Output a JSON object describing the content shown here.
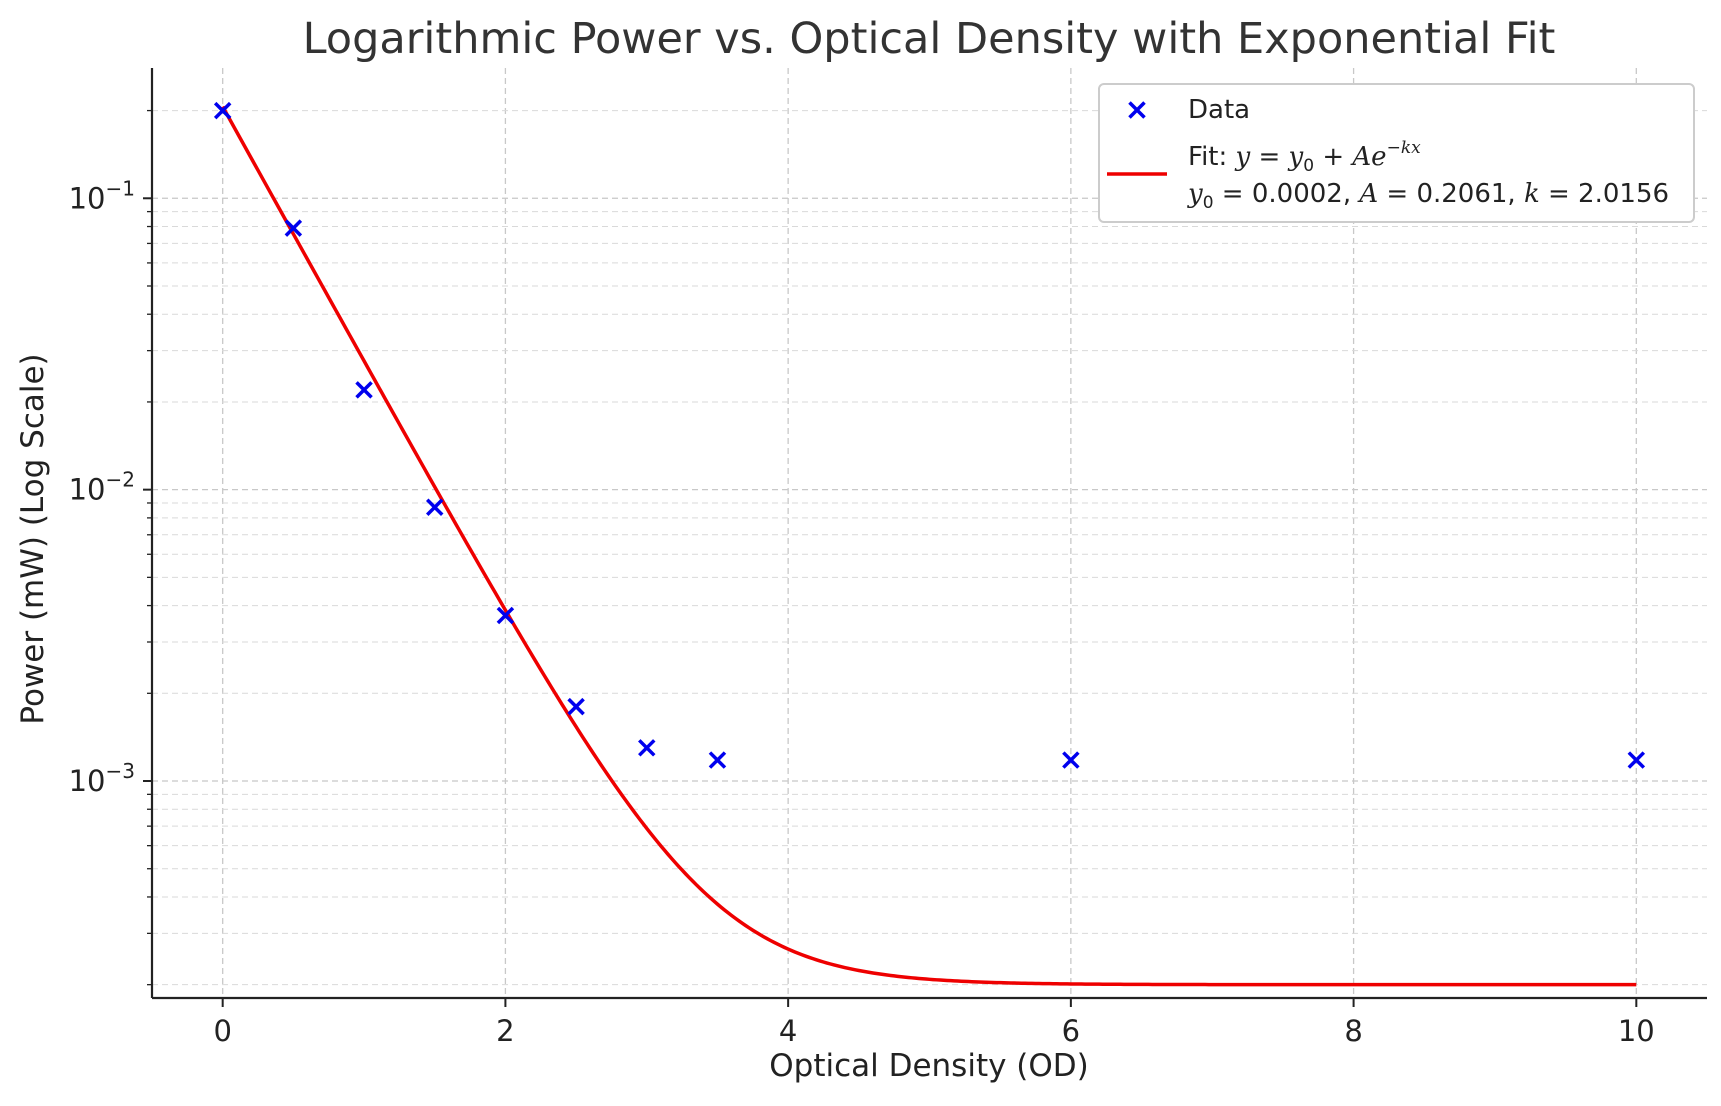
{
  "chart_data": {
    "type": "scatter",
    "title": "Logarithmic Power vs. Optical Density with Exponential Fit",
    "xlabel": "Optical Density (OD)",
    "ylabel": "Power (mW) (Log Scale)",
    "xlim": [
      -0.5,
      10.5
    ],
    "ylim": [
      0.00018,
      0.28
    ],
    "yscale": "log",
    "grid": true,
    "legend_position": "upper right",
    "x_ticks": [
      0,
      2,
      4,
      6,
      8,
      10
    ],
    "y_ticks": [
      0.001,
      0.01,
      0.1
    ],
    "y_tick_labels": [
      "10^-3",
      "10^-2",
      "10^-1"
    ],
    "series": [
      {
        "name": "Data",
        "kind": "scatter",
        "marker": "x",
        "color": "#0000ee",
        "x": [
          0,
          0.5,
          1,
          1.5,
          2,
          2.5,
          3,
          3.5,
          6,
          10
        ],
        "y": [
          0.2,
          0.079,
          0.022,
          0.0087,
          0.0037,
          0.0018,
          0.0013,
          0.00118,
          0.00118,
          0.00118
        ]
      },
      {
        "name": "Fit: y = y0 + Ae^-kx",
        "kind": "line",
        "color": "#ee0000",
        "model": "y0 + A*exp(-k*x)",
        "params": {
          "y0": 0.0002,
          "A": 0.2061,
          "k": 2.0156
        },
        "x_range": [
          0,
          10
        ]
      }
    ],
    "legend": {
      "data_label": "Data",
      "fit_prefix": "Fit:",
      "fit_params_text": "y0 = 0.0002, A = 0.2061, k = 2.0156"
    }
  }
}
